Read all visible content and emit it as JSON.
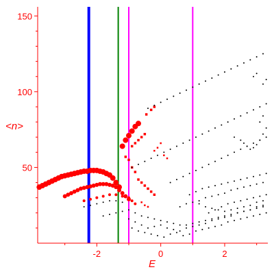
{
  "chart_data": {
    "type": "scatter",
    "title": "",
    "xlabel": "E",
    "ylabel": "<n>",
    "xlim": [
      -3.85,
      3.35
    ],
    "ylim": [
      0,
      156
    ],
    "x_ticks": [
      -2,
      0,
      2
    ],
    "y_ticks": [
      50,
      100,
      150
    ],
    "grid": false,
    "colors": {
      "axis": "#ff0000",
      "highlight_points": "#ff0000",
      "points": "#000000",
      "line_blue": "#0000ff",
      "line_green": "#008000",
      "line_magenta": "#ff00ff"
    },
    "vertical_lines": [
      {
        "x": -2.25,
        "color": "#0000ff"
      },
      {
        "x": -1.33,
        "color": "#008000"
      },
      {
        "x": -1.0,
        "color": "#ff00ff"
      },
      {
        "x": 1.0,
        "color": "#ff00ff"
      }
    ],
    "series": [
      {
        "color": "#ff0000",
        "marker": "circle-large",
        "points": [
          [
            -3.8,
            37
          ],
          [
            -3.7,
            38
          ],
          [
            -3.6,
            39
          ],
          [
            -3.5,
            40
          ],
          [
            -3.4,
            41
          ],
          [
            -3.3,
            42
          ],
          [
            -3.2,
            43
          ],
          [
            -3.1,
            44
          ],
          [
            -3.0,
            44.5
          ],
          [
            -2.9,
            45
          ],
          [
            -2.8,
            45.5
          ],
          [
            -2.7,
            46
          ],
          [
            -2.6,
            46.5
          ],
          [
            -2.5,
            47
          ],
          [
            -2.4,
            47.5
          ],
          [
            -2.3,
            47.5
          ],
          [
            -2.2,
            48
          ],
          [
            -2.1,
            48
          ],
          [
            -2.0,
            48
          ],
          [
            -1.9,
            47.5
          ],
          [
            -1.8,
            47
          ],
          [
            -1.7,
            46
          ],
          [
            -1.6,
            45
          ],
          [
            -1.5,
            43
          ],
          [
            -1.4,
            40
          ],
          [
            -1.3,
            37
          ]
        ]
      },
      {
        "color": "#ff0000",
        "marker": "circle-medium",
        "points": [
          [
            -3.0,
            31
          ],
          [
            -2.9,
            32
          ],
          [
            -2.8,
            33
          ],
          [
            -2.7,
            34
          ],
          [
            -2.6,
            35
          ],
          [
            -2.5,
            36
          ],
          [
            -2.4,
            36.5
          ],
          [
            -2.3,
            37
          ],
          [
            -2.2,
            37.5
          ],
          [
            -2.1,
            38
          ],
          [
            -2.0,
            38.5
          ],
          [
            -1.9,
            39
          ],
          [
            -1.8,
            39
          ],
          [
            -1.7,
            39
          ],
          [
            -1.6,
            38.5
          ],
          [
            -1.5,
            38
          ],
          [
            -1.4,
            37
          ],
          [
            -1.3,
            35
          ],
          [
            -1.2,
            33
          ],
          [
            -1.1,
            31
          ],
          [
            -1.0,
            29
          ]
        ]
      },
      {
        "color": "#ff0000",
        "marker": "circle-small",
        "points": [
          [
            -2.4,
            28
          ],
          [
            -2.2,
            29
          ],
          [
            -2.0,
            30
          ],
          [
            -1.8,
            31
          ],
          [
            -1.6,
            32
          ],
          [
            -1.4,
            32
          ],
          [
            -1.2,
            31
          ],
          [
            -1.0,
            30
          ],
          [
            -0.9,
            28
          ],
          [
            -0.8,
            26
          ]
        ]
      },
      {
        "color": "#ff0000",
        "marker": "circle-large",
        "points": [
          [
            -1.2,
            64
          ],
          [
            -1.1,
            68
          ],
          [
            -1.0,
            71
          ],
          [
            -0.9,
            74
          ],
          [
            -0.8,
            77
          ],
          [
            -0.7,
            79
          ]
        ]
      },
      {
        "color": "#ff0000",
        "marker": "square",
        "points": [
          [
            -0.9,
            64
          ],
          [
            -0.8,
            66
          ],
          [
            -0.7,
            68
          ],
          [
            -0.6,
            70
          ],
          [
            -0.5,
            72
          ],
          [
            -0.45,
            85
          ],
          [
            -0.3,
            88
          ],
          [
            -0.2,
            90
          ],
          [
            -1.1,
            57
          ],
          [
            -1.0,
            55
          ],
          [
            -0.9,
            50
          ],
          [
            -0.8,
            47
          ],
          [
            -0.7,
            42
          ],
          [
            -0.6,
            40
          ],
          [
            -0.5,
            38
          ],
          [
            -0.4,
            36
          ],
          [
            -0.3,
            34
          ],
          [
            -0.2,
            32
          ]
        ]
      },
      {
        "color": "#ff0000",
        "marker": "square-small",
        "points": [
          [
            0.0,
            66
          ],
          [
            -0.1,
            63
          ],
          [
            -0.2,
            61
          ],
          [
            0.1,
            58
          ],
          [
            0.2,
            56
          ],
          [
            -0.6,
            27
          ],
          [
            -0.5,
            25
          ],
          [
            -0.4,
            24
          ]
        ]
      },
      {
        "color": "#000000",
        "marker": "dot",
        "points": [
          [
            -0.4,
            89
          ],
          [
            -0.2,
            91
          ],
          [
            0.0,
            93
          ],
          [
            0.2,
            95
          ],
          [
            0.4,
            97
          ],
          [
            0.6,
            99
          ],
          [
            0.8,
            101
          ],
          [
            1.0,
            103
          ],
          [
            1.2,
            105
          ],
          [
            1.4,
            107
          ],
          [
            1.6,
            109
          ],
          [
            1.8,
            111
          ],
          [
            2.0,
            113
          ],
          [
            2.2,
            115
          ],
          [
            2.4,
            117
          ],
          [
            2.6,
            119
          ],
          [
            2.8,
            121
          ],
          [
            3.0,
            123
          ],
          [
            3.2,
            125
          ],
          [
            -0.9,
            50
          ],
          [
            -0.7,
            52
          ],
          [
            -0.5,
            54
          ],
          [
            -0.3,
            56
          ],
          [
            -0.1,
            58
          ],
          [
            0.1,
            60
          ],
          [
            0.3,
            62
          ],
          [
            0.5,
            64
          ],
          [
            0.7,
            66
          ],
          [
            0.9,
            68
          ],
          [
            1.1,
            70
          ],
          [
            1.3,
            72
          ],
          [
            1.5,
            74
          ],
          [
            1.7,
            76
          ],
          [
            1.9,
            78
          ],
          [
            2.1,
            80
          ],
          [
            2.3,
            82
          ],
          [
            2.5,
            84
          ],
          [
            2.7,
            86
          ],
          [
            2.9,
            88
          ],
          [
            3.1,
            90
          ],
          [
            3.3,
            92
          ],
          [
            0.3,
            40
          ],
          [
            0.5,
            42
          ],
          [
            0.7,
            44
          ],
          [
            0.9,
            46
          ],
          [
            1.1,
            48
          ],
          [
            1.3,
            50
          ],
          [
            1.5,
            52
          ],
          [
            1.7,
            54
          ],
          [
            1.9,
            56
          ],
          [
            2.1,
            58
          ],
          [
            2.3,
            60
          ],
          [
            2.5,
            62
          ],
          [
            2.7,
            64
          ],
          [
            2.9,
            66
          ],
          [
            3.1,
            68
          ],
          [
            3.3,
            70
          ],
          [
            -2.4,
            24
          ],
          [
            -2.2,
            25
          ],
          [
            -2.0,
            26
          ],
          [
            -1.8,
            27
          ],
          [
            -1.6,
            28
          ],
          [
            -1.4,
            28
          ],
          [
            -1.2,
            27
          ],
          [
            -1.8,
            18
          ],
          [
            -1.6,
            19
          ],
          [
            -1.4,
            20
          ],
          [
            -1.2,
            21
          ],
          [
            -1.0,
            22
          ],
          [
            -0.8,
            20
          ],
          [
            -0.6,
            18
          ],
          [
            -0.4,
            17
          ],
          [
            -0.2,
            16
          ],
          [
            0.0,
            15
          ],
          [
            0.2,
            14
          ],
          [
            0.4,
            13
          ],
          [
            0.6,
            12
          ],
          [
            0.8,
            12
          ],
          [
            1.0,
            13
          ],
          [
            1.2,
            14
          ],
          [
            1.4,
            15
          ],
          [
            1.6,
            16
          ],
          [
            1.8,
            17
          ],
          [
            2.0,
            18
          ],
          [
            2.2,
            19
          ],
          [
            2.4,
            20
          ],
          [
            2.6,
            21
          ],
          [
            2.8,
            22
          ],
          [
            3.0,
            23
          ],
          [
            3.2,
            24
          ],
          [
            -1.0,
            16
          ],
          [
            -0.8,
            14
          ],
          [
            -0.6,
            12
          ],
          [
            -0.4,
            10
          ],
          [
            -0.2,
            11
          ],
          [
            0.0,
            12
          ],
          [
            0.2,
            10
          ],
          [
            0.4,
            9
          ],
          [
            0.6,
            8
          ],
          [
            0.8,
            10
          ],
          [
            1.0,
            11
          ],
          [
            1.2,
            12
          ],
          [
            1.4,
            13
          ],
          [
            1.6,
            15
          ],
          [
            1.8,
            16
          ],
          [
            2.0,
            17
          ],
          [
            2.2,
            18
          ],
          [
            2.4,
            20
          ],
          [
            2.6,
            21
          ],
          [
            2.8,
            22
          ],
          [
            3.0,
            24
          ],
          [
            3.2,
            25
          ],
          [
            -0.9,
            10
          ],
          [
            -0.7,
            8
          ],
          [
            -0.5,
            7
          ],
          [
            -0.3,
            6
          ],
          [
            -0.1,
            5
          ],
          [
            0.1,
            4
          ],
          [
            0.3,
            6
          ],
          [
            0.5,
            7
          ],
          [
            0.7,
            5
          ],
          [
            0.9,
            6
          ],
          [
            1.1,
            8
          ],
          [
            1.3,
            9
          ],
          [
            1.5,
            10
          ],
          [
            1.7,
            11
          ],
          [
            1.9,
            12
          ],
          [
            2.1,
            14
          ],
          [
            2.3,
            15
          ],
          [
            2.5,
            16
          ],
          [
            2.7,
            17
          ],
          [
            2.9,
            18
          ],
          [
            3.1,
            19
          ],
          [
            3.3,
            20
          ],
          [
            0.9,
            32
          ],
          [
            1.1,
            34
          ],
          [
            1.3,
            36
          ],
          [
            1.5,
            37
          ],
          [
            1.7,
            38
          ],
          [
            1.9,
            39
          ],
          [
            2.1,
            40
          ],
          [
            2.3,
            41
          ],
          [
            2.5,
            42
          ],
          [
            2.7,
            43
          ],
          [
            2.9,
            44
          ],
          [
            3.1,
            45
          ],
          [
            3.3,
            46
          ],
          [
            1.2,
            28
          ],
          [
            1.4,
            30
          ],
          [
            1.6,
            31
          ],
          [
            1.8,
            32
          ],
          [
            2.0,
            33
          ],
          [
            2.2,
            35
          ],
          [
            2.4,
            36
          ],
          [
            2.6,
            37
          ],
          [
            2.8,
            38
          ],
          [
            3.0,
            39
          ],
          [
            3.2,
            40
          ],
          [
            2.3,
            70
          ],
          [
            2.5,
            68
          ],
          [
            2.6,
            66
          ],
          [
            2.7,
            64
          ],
          [
            2.8,
            62
          ],
          [
            2.9,
            63
          ],
          [
            3.0,
            65
          ],
          [
            3.1,
            68
          ],
          [
            3.2,
            72
          ],
          [
            3.3,
            76
          ],
          [
            3.1,
            80
          ],
          [
            3.2,
            84
          ],
          [
            1.5,
            20
          ],
          [
            1.7,
            22
          ],
          [
            1.9,
            24
          ],
          [
            2.1,
            26
          ],
          [
            2.3,
            27
          ],
          [
            2.5,
            28
          ],
          [
            2.7,
            29
          ],
          [
            2.9,
            30
          ],
          [
            3.1,
            31
          ],
          [
            3.3,
            32
          ],
          [
            0.6,
            24
          ],
          [
            0.8,
            26
          ],
          [
            1.0,
            27
          ],
          [
            1.2,
            26
          ],
          [
            1.4,
            24
          ],
          [
            1.6,
            23
          ],
          [
            1.8,
            22
          ],
          [
            2.0,
            21
          ],
          [
            2.2,
            22
          ],
          [
            2.4,
            23
          ],
          [
            2.6,
            24
          ],
          [
            2.8,
            25
          ],
          [
            3.0,
            27
          ],
          [
            3.2,
            28
          ],
          [
            3.2,
            105
          ],
          [
            3.3,
            108
          ],
          [
            2.9,
            110
          ],
          [
            3.0,
            112
          ]
        ]
      }
    ]
  }
}
